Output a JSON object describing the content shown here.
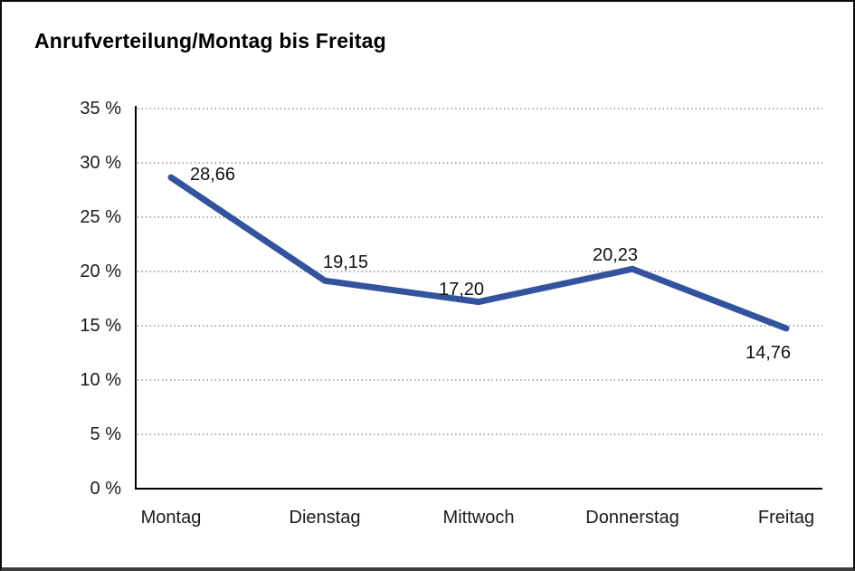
{
  "page": {
    "title": "Anrufverteilung/Montag bis Freitag"
  },
  "chart_data": {
    "type": "line",
    "title": "Anrufverteilung/Montag bis Freitag",
    "categories": [
      "Montag",
      "Dienstag",
      "Mittwoch",
      "Donnerstag",
      "Freitag"
    ],
    "series": [
      {
        "name": "Anrufverteilung",
        "values": [
          28.66,
          19.15,
          17.2,
          20.23,
          14.76
        ]
      }
    ],
    "point_labels": [
      "28,66",
      "19,15",
      "17,20",
      "20,23",
      "14,76"
    ],
    "y_tick_labels": [
      "0 %",
      "5 %",
      "10 %",
      "15 %",
      "20 %",
      "25 %",
      "30 %",
      "35 %"
    ],
    "ylim": [
      0,
      35
    ],
    "y_step": 5,
    "xlabel": "",
    "ylabel": "",
    "legend": "none",
    "grid": "horizontal-dotted",
    "colors": {
      "line": "#34539E",
      "axis": "#000000",
      "gridline": "#7f7f7f",
      "text": "#1a1a1a"
    }
  }
}
